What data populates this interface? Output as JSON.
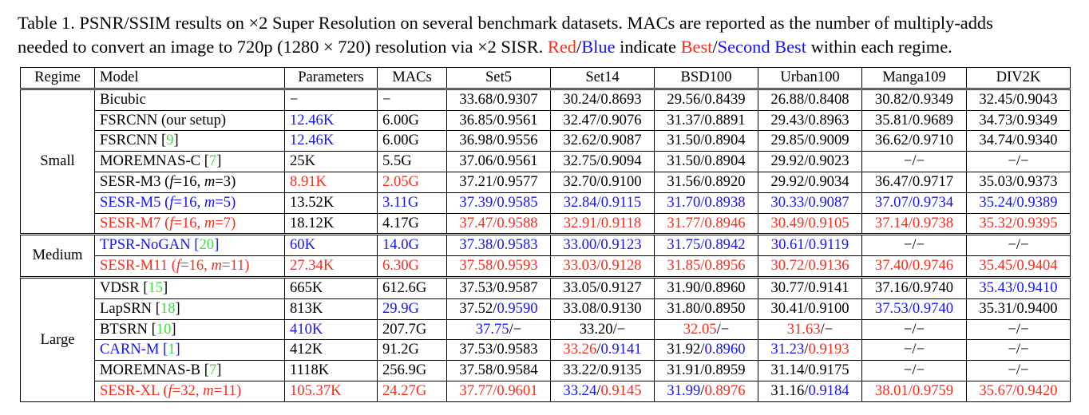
{
  "colors": {
    "black": "#000000",
    "red": "#f92c1b",
    "blue": "#1414ff",
    "green": "#3cdd3c"
  },
  "caption": {
    "lines": [
      [
        {
          "t": "Table 1. PSNR/SSIM results on ×2 Super Resolution on several benchmark datasets. MACs are reported as the number of multiply-adds"
        }
      ],
      [
        {
          "t": "needed to convert an image to 720p (1280 × 720) resolution via ×2 SISR. "
        },
        {
          "t": "Red",
          "c": "red"
        },
        {
          "t": "/"
        },
        {
          "t": "Blue",
          "c": "blue"
        },
        {
          "t": " indicate "
        },
        {
          "t": "Best",
          "c": "red"
        },
        {
          "t": "/"
        },
        {
          "t": "Second Best",
          "c": "blue"
        },
        {
          "t": " within each regime."
        }
      ]
    ]
  },
  "table": {
    "headers": [
      "Regime",
      "Model",
      "Parameters",
      "MACs",
      "Set5",
      "Set14",
      "BSD100",
      "Urban100",
      "Manga109",
      "DIV2K"
    ],
    "groups": [
      {
        "regime": "Small",
        "rows": [
          {
            "model": [
              {
                "t": "Bicubic"
              }
            ],
            "cells": [
              "−",
              "−",
              "33.68/0.9307",
              "30.24/0.8693",
              "29.56/0.8439",
              "26.88/0.8408",
              "30.82/0.9349",
              "32.45/0.9043"
            ]
          },
          {
            "model": [
              {
                "t": "FSRCNN (our setup)"
              }
            ],
            "cells": [
              {
                "t": "12.46K",
                "c": "blue"
              },
              "6.00G",
              "36.85/0.9561",
              "32.47/0.9076",
              "31.37/0.8891",
              "29.43/0.8963",
              "35.81/0.9689",
              "34.73/0.9349"
            ]
          },
          {
            "model": [
              {
                "t": "FSRCNN ["
              },
              {
                "t": "9",
                "c": "green"
              },
              {
                "t": "]"
              }
            ],
            "cells": [
              {
                "t": "12.46K",
                "c": "blue"
              },
              "6.00G",
              "36.98/0.9556",
              "32.62/0.9087",
              "31.50/0.8904",
              "29.85/0.9009",
              "36.62/0.9710",
              "34.74/0.9340"
            ]
          },
          {
            "model": [
              {
                "t": "MOREMNAS-C ["
              },
              {
                "t": "7",
                "c": "green"
              },
              {
                "t": "]"
              }
            ],
            "cells": [
              "25K",
              "5.5G",
              "37.06/0.9561",
              "32.75/0.9094",
              "31.50/0.8904",
              "29.92/0.9023",
              "−/−",
              "−/−"
            ]
          },
          {
            "model": [
              {
                "t": "SESR-M3 ("
              },
              {
                "t": "f",
                "i": 1
              },
              {
                "t": "=16, "
              },
              {
                "t": "m",
                "i": 1
              },
              {
                "t": "=3)"
              }
            ],
            "cells": [
              {
                "t": "8.91K",
                "c": "red"
              },
              {
                "t": "2.05G",
                "c": "red"
              },
              "37.21/0.9577",
              "32.70/0.9100",
              "31.56/0.8920",
              "29.92/0.9034",
              "36.47/0.9717",
              "35.03/0.9373"
            ]
          },
          {
            "model": [
              {
                "t": "SESR-M5 (",
                "c": "blue"
              },
              {
                "t": "f",
                "c": "blue",
                "i": 1
              },
              {
                "t": "=16, ",
                "c": "blue"
              },
              {
                "t": "m",
                "c": "blue",
                "i": 1
              },
              {
                "t": "=5)",
                "c": "blue"
              }
            ],
            "cells": [
              "13.52K",
              {
                "t": "3.11G",
                "c": "blue"
              },
              {
                "t": "37.39/0.9585",
                "c": "blue"
              },
              {
                "t": "32.84/0.9115",
                "c": "blue"
              },
              {
                "t": "31.70/0.8938",
                "c": "blue"
              },
              {
                "t": "30.33/0.9087",
                "c": "blue"
              },
              {
                "t": "37.07/0.9734",
                "c": "blue"
              },
              {
                "t": "35.24/0.9389",
                "c": "blue"
              }
            ]
          },
          {
            "model": [
              {
                "t": "SESR-M7 (",
                "c": "red"
              },
              {
                "t": "f",
                "c": "red",
                "i": 1
              },
              {
                "t": "=16, ",
                "c": "red"
              },
              {
                "t": "m",
                "c": "red",
                "i": 1
              },
              {
                "t": "=7)",
                "c": "red"
              }
            ],
            "cells": [
              "18.12K",
              "4.17G",
              {
                "t": "37.47/0.9588",
                "c": "red"
              },
              {
                "t": "32.91/0.9118",
                "c": "red"
              },
              {
                "t": "31.77/0.8946",
                "c": "red"
              },
              {
                "t": "30.49/0.9105",
                "c": "red"
              },
              {
                "t": "37.14/0.9738",
                "c": "red"
              },
              {
                "t": "35.32/0.9395",
                "c": "red"
              }
            ]
          }
        ]
      },
      {
        "regime": "Medium",
        "rows": [
          {
            "model": [
              {
                "t": "TPSR-NoGAN [",
                "c": "blue"
              },
              {
                "t": "20",
                "c": "green"
              },
              {
                "t": "]",
                "c": "blue"
              }
            ],
            "cells": [
              {
                "t": "60K",
                "c": "blue"
              },
              {
                "t": "14.0G",
                "c": "blue"
              },
              {
                "t": "37.38/0.9583",
                "c": "blue"
              },
              {
                "t": "33.00/0.9123",
                "c": "blue"
              },
              {
                "t": "31.75/0.8942",
                "c": "blue"
              },
              {
                "t": "30.61/0.9119",
                "c": "blue"
              },
              "−/−",
              "−/−"
            ]
          },
          {
            "model": [
              {
                "t": "SESR-M11 (",
                "c": "red"
              },
              {
                "t": "f",
                "c": "red",
                "i": 1
              },
              {
                "t": "=16, ",
                "c": "red"
              },
              {
                "t": "m",
                "c": "red",
                "i": 1
              },
              {
                "t": "=11)",
                "c": "red"
              }
            ],
            "cells": [
              {
                "t": "27.34K",
                "c": "red"
              },
              {
                "t": "6.30G",
                "c": "red"
              },
              {
                "t": "37.58/0.9593",
                "c": "red"
              },
              {
                "t": "33.03/0.9128",
                "c": "red"
              },
              {
                "t": "31.85/0.8956",
                "c": "red"
              },
              {
                "t": "30.72/0.9136",
                "c": "red"
              },
              {
                "t": "37.40/0.9746",
                "c": "red"
              },
              {
                "t": "35.45/0.9404",
                "c": "red"
              }
            ]
          }
        ]
      },
      {
        "regime": "Large",
        "rows": [
          {
            "model": [
              {
                "t": "VDSR ["
              },
              {
                "t": "15",
                "c": "green"
              },
              {
                "t": "]"
              }
            ],
            "cells": [
              "665K",
              "612.6G",
              "37.53/0.9587",
              "33.05/0.9127",
              "31.90/0.8960",
              "30.77/0.9141",
              "37.16/0.9740",
              {
                "t": "35.43/0.9410",
                "c": "blue"
              }
            ]
          },
          {
            "model": [
              {
                "t": "LapSRN ["
              },
              {
                "t": "18",
                "c": "green"
              },
              {
                "t": "]"
              }
            ],
            "cells": [
              "813K",
              {
                "t": "29.9G",
                "c": "blue"
              },
              [
                {
                  "t": "37.52/"
                },
                {
                  "t": "0.9590",
                  "c": "blue"
                }
              ],
              "33.08/0.9130",
              "31.80/0.8950",
              "30.41/0.9100",
              {
                "t": "37.53/0.9740",
                "c": "blue"
              },
              "35.31/0.9400"
            ]
          },
          {
            "model": [
              {
                "t": "BTSRN ["
              },
              {
                "t": "10",
                "c": "green"
              },
              {
                "t": "]"
              }
            ],
            "cells": [
              {
                "t": "410K",
                "c": "blue"
              },
              "207.7G",
              [
                {
                  "t": "37.75",
                  "c": "blue"
                },
                {
                  "t": "/−"
                }
              ],
              "33.20/−",
              [
                {
                  "t": "32.05",
                  "c": "red"
                },
                {
                  "t": "/−"
                }
              ],
              [
                {
                  "t": "31.63",
                  "c": "red"
                },
                {
                  "t": "/−"
                }
              ],
              "−/−",
              "−/−"
            ]
          },
          {
            "model": [
              {
                "t": "CARN-M [",
                "c": "blue"
              },
              {
                "t": "1",
                "c": "green"
              },
              {
                "t": "]",
                "c": "blue"
              }
            ],
            "cells": [
              "412K",
              "91.2G",
              "37.53/0.9583",
              [
                {
                  "t": "33.26",
                  "c": "red"
                },
                {
                  "t": "/"
                },
                {
                  "t": "0.9141",
                  "c": "blue"
                }
              ],
              [
                {
                  "t": "31.92/"
                },
                {
                  "t": "0.8960",
                  "c": "blue"
                }
              ],
              [
                {
                  "t": "31.23",
                  "c": "blue"
                },
                {
                  "t": "/"
                },
                {
                  "t": "0.9193",
                  "c": "red"
                }
              ],
              "−/−",
              "−/−"
            ]
          },
          {
            "model": [
              {
                "t": "MOREMNAS-B ["
              },
              {
                "t": "7",
                "c": "green"
              },
              {
                "t": "]"
              }
            ],
            "cells": [
              "1118K",
              "256.9G",
              "37.58/0.9584",
              "33.22/0.9135",
              "31.91/0.8959",
              "31.14/0.9175",
              "−/−",
              "−/−"
            ]
          },
          {
            "model": [
              {
                "t": "SESR-XL (",
                "c": "red"
              },
              {
                "t": "f",
                "c": "red",
                "i": 1
              },
              {
                "t": "=32, ",
                "c": "red"
              },
              {
                "t": "m",
                "c": "red",
                "i": 1
              },
              {
                "t": "=11)",
                "c": "red"
              }
            ],
            "cells": [
              {
                "t": "105.37K",
                "c": "red"
              },
              {
                "t": "24.27G",
                "c": "red"
              },
              {
                "t": "37.77/0.9601",
                "c": "red"
              },
              [
                {
                  "t": "33.24",
                  "c": "blue"
                },
                {
                  "t": "/"
                },
                {
                  "t": "0.9145",
                  "c": "red"
                }
              ],
              [
                {
                  "t": "31.99",
                  "c": "blue"
                },
                {
                  "t": "/"
                },
                {
                  "t": "0.8976",
                  "c": "red"
                }
              ],
              [
                {
                  "t": "31.16/"
                },
                {
                  "t": "0.9184",
                  "c": "blue"
                }
              ],
              {
                "t": "38.01/0.9759",
                "c": "red"
              },
              {
                "t": "35.67/0.9420",
                "c": "red"
              }
            ]
          }
        ]
      }
    ]
  }
}
